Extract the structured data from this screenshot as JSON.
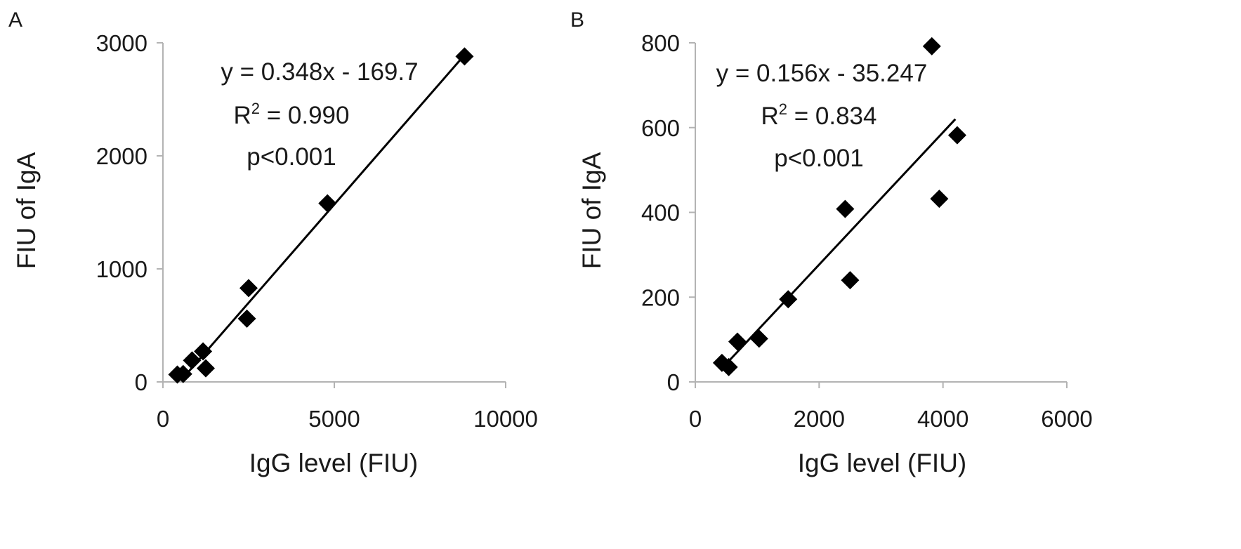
{
  "chart_data": [
    {
      "panel": "A",
      "type": "scatter",
      "xlabel": "IgG level (FIU)",
      "ylabel": "FIU of IgA",
      "xlim": [
        0,
        10000
      ],
      "ylim": [
        0,
        3000
      ],
      "xticks": [
        "0",
        "5000",
        "10000"
      ],
      "yticks": [
        "0",
        "1000",
        "2000",
        "3000"
      ],
      "annotations": {
        "equation": "y = 0.348x - 169.7",
        "r_prefix": "R",
        "r_sup": "2",
        "r_value": " = 0.990",
        "pvalue": "p<0.001"
      },
      "fit": {
        "slope": 0.348,
        "intercept": -169.7,
        "x_range": [
          640,
          8800
        ]
      },
      "points": [
        {
          "x": 420,
          "y": 65
        },
        {
          "x": 590,
          "y": 70
        },
        {
          "x": 850,
          "y": 190
        },
        {
          "x": 1170,
          "y": 270
        },
        {
          "x": 1250,
          "y": 120
        },
        {
          "x": 2450,
          "y": 560
        },
        {
          "x": 2500,
          "y": 830
        },
        {
          "x": 4800,
          "y": 1580
        },
        {
          "x": 8800,
          "y": 2880
        }
      ]
    },
    {
      "panel": "B",
      "type": "scatter",
      "xlabel": "IgG level (FIU)",
      "ylabel": "FIU of IgA",
      "xlim": [
        0,
        6000
      ],
      "ylim": [
        0,
        800
      ],
      "xticks": [
        "0",
        "2000",
        "4000",
        "6000"
      ],
      "yticks": [
        "0",
        "200",
        "400",
        "600",
        "800"
      ],
      "annotations": {
        "equation": "y = 0.156x - 35.247",
        "r_prefix": "R",
        "r_sup": "2",
        "r_value": " = 0.834",
        "pvalue": "p<0.001"
      },
      "fit": {
        "slope": 0.156,
        "intercept": -35.247,
        "x_range": [
          470,
          4200
        ]
      },
      "points": [
        {
          "x": 430,
          "y": 45
        },
        {
          "x": 540,
          "y": 35
        },
        {
          "x": 680,
          "y": 95
        },
        {
          "x": 1030,
          "y": 102
        },
        {
          "x": 1500,
          "y": 195
        },
        {
          "x": 2420,
          "y": 408
        },
        {
          "x": 2500,
          "y": 240
        },
        {
          "x": 3820,
          "y": 792
        },
        {
          "x": 3940,
          "y": 432
        },
        {
          "x": 4230,
          "y": 582
        }
      ]
    }
  ]
}
